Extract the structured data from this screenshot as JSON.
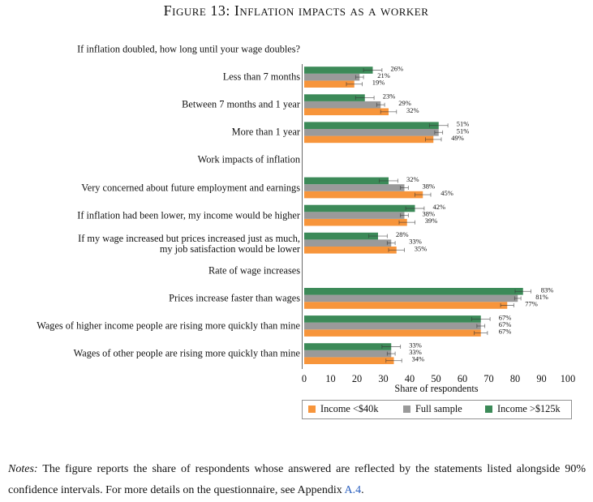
{
  "chart_data": {
    "type": "grouped-hbar",
    "title": "Figure 13: Inflation impacts as a worker",
    "categories": [
      "If inflation doubled, how long until your wage doubles?",
      "Less than 7 months",
      "Between 7 months and 1 year",
      "More than 1 year",
      "Work impacts of inflation",
      "Very concerned about future employment and earnings",
      "If inflation had been lower, my income would be higher",
      "If my wage increased but prices increased just as much,\nmy job satisfaction would be lower",
      "Rate of wage increases",
      "Prices increase faster than wages",
      "Wages of higher income people are rising more quickly than mine",
      "Wages of other people are rising more quickly than mine"
    ],
    "series": [
      {
        "name": "Income <$40k",
        "color": "#f7953b",
        "values": [
          null,
          19,
          32,
          49,
          null,
          45,
          39,
          35,
          null,
          77,
          67,
          34
        ],
        "errors": [
          null,
          3,
          3,
          3,
          null,
          3,
          3,
          3,
          null,
          2.5,
          2.5,
          3
        ],
        "value_labels": [
          null,
          "19%",
          "32%",
          "49%",
          null,
          "45%",
          "39%",
          "35%",
          null,
          "77%",
          "67%",
          "34%"
        ]
      },
      {
        "name": "Full sample",
        "color": "#9a9a9a",
        "values": [
          null,
          21,
          29,
          51,
          null,
          38,
          38,
          33,
          null,
          81,
          67,
          33
        ],
        "errors": [
          null,
          1.5,
          1.5,
          1.5,
          null,
          1.5,
          1.5,
          1.5,
          null,
          1.2,
          1.5,
          1.5
        ],
        "value_labels": [
          null,
          "21%",
          "29%",
          "51%",
          null,
          "38%",
          "38%",
          "33%",
          null,
          "81%",
          "67%",
          "33%"
        ]
      },
      {
        "name": "Income >$125k",
        "color": "#3c8a58",
        "values": [
          null,
          26,
          23,
          51,
          null,
          32,
          42,
          28,
          null,
          83,
          67,
          33
        ],
        "errors": [
          null,
          3.5,
          3.5,
          3.5,
          null,
          3.5,
          3.5,
          3.5,
          null,
          3,
          3.5,
          3.5
        ],
        "value_labels": [
          null,
          "26%",
          "23%",
          "51%",
          null,
          "32%",
          "42%",
          "28%",
          null,
          "83%",
          "67%",
          "33%"
        ]
      }
    ],
    "xlim": [
      0,
      100
    ],
    "xticks": [
      0,
      10,
      20,
      30,
      40,
      50,
      60,
      70,
      80,
      90,
      100
    ],
    "xlabel": "Share of respondents",
    "grid": false,
    "legend": "bottom"
  },
  "notes": {
    "label": "Notes:",
    "text": "The figure reports the share of respondents whose answered are reflected by the statements listed alongside 90% confidence intervals. For more details on the questionnaire, see Appendix",
    "link": "A.4",
    "end": "."
  }
}
